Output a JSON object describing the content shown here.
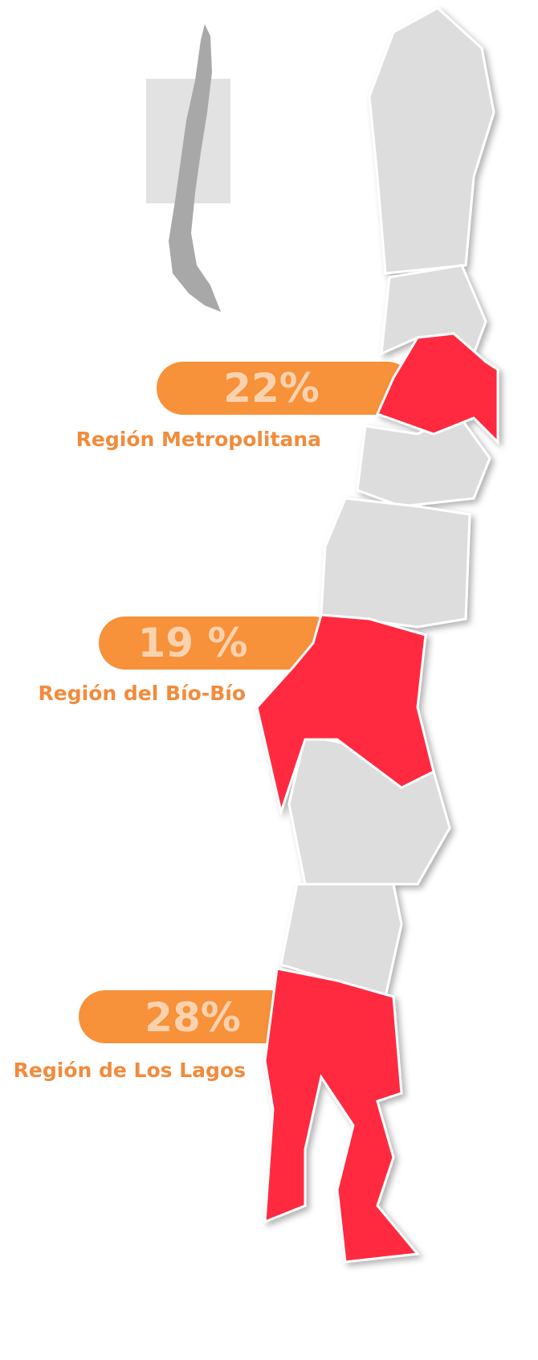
{
  "callouts": [
    {
      "percent": "22%",
      "region": "Región Metropolitana"
    },
    {
      "percent": "19 %",
      "region": "Región del Bío-Bío"
    },
    {
      "percent": "28%",
      "region": "Región de Los Lagos"
    }
  ]
}
